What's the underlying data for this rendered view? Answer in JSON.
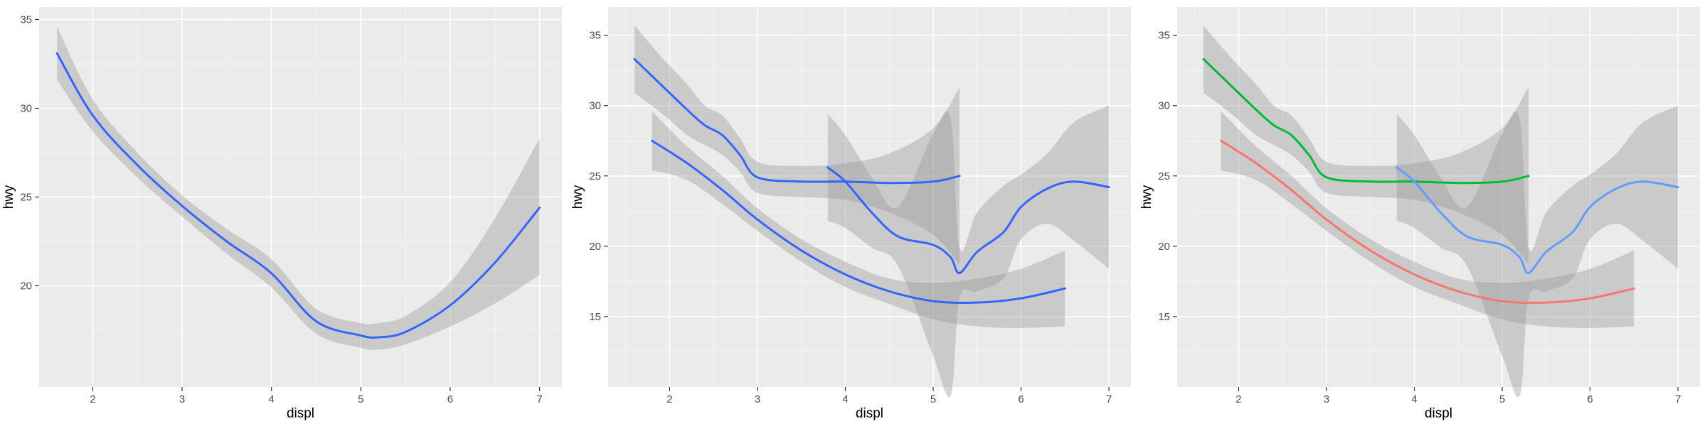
{
  "chart_data": [
    {
      "type": "line",
      "xlabel": "displ",
      "ylabel": "hwy",
      "xlim": [
        1.4,
        7.25
      ],
      "ylim": [
        14.3,
        35.7
      ],
      "xticks": [
        2,
        3,
        4,
        5,
        6,
        7
      ],
      "yticks": [
        20,
        25,
        30,
        35
      ],
      "grid": true,
      "legend": "none",
      "series": [
        {
          "color": "#3366FF",
          "x": [
            1.6,
            2.0,
            2.5,
            3.0,
            3.5,
            4.0,
            4.5,
            5.0,
            5.2,
            5.5,
            6.0,
            6.5,
            7.0
          ],
          "y": [
            33.1,
            29.6,
            26.8,
            24.5,
            22.5,
            20.7,
            18.0,
            17.2,
            17.1,
            17.4,
            18.9,
            21.3,
            24.4
          ],
          "lo": [
            31.6,
            28.7,
            26.1,
            23.9,
            21.8,
            19.9,
            17.3,
            16.5,
            16.4,
            16.7,
            17.7,
            19.0,
            20.6
          ],
          "hi": [
            34.6,
            30.5,
            27.5,
            25.1,
            23.2,
            21.5,
            18.7,
            17.9,
            17.9,
            18.3,
            20.2,
            23.8,
            28.3
          ]
        }
      ]
    },
    {
      "type": "line",
      "xlabel": "displ",
      "ylabel": "hwy",
      "xlim": [
        1.3,
        7.25
      ],
      "ylim": [
        10.0,
        37.0
      ],
      "xticks": [
        2,
        3,
        4,
        5,
        6,
        7
      ],
      "yticks": [
        15,
        20,
        25,
        30,
        35
      ],
      "grid": true,
      "legend": "none",
      "series": [
        {
          "color": "#3366FF",
          "x": [
            1.8,
            2.2,
            2.6,
            3.0,
            3.5,
            4.0,
            4.5,
            5.0,
            5.5,
            6.0,
            6.5
          ],
          "y": [
            27.5,
            25.9,
            24.0,
            21.9,
            19.7,
            18.0,
            16.8,
            16.1,
            16.0,
            16.3,
            17.0
          ],
          "lo": [
            25.4,
            24.7,
            23.0,
            21.1,
            18.9,
            17.1,
            15.9,
            14.8,
            14.3,
            14.2,
            14.3
          ],
          "hi": [
            29.6,
            27.1,
            25.0,
            22.7,
            20.5,
            18.9,
            17.7,
            17.4,
            17.7,
            18.4,
            19.7
          ]
        },
        {
          "color": "#3366FF",
          "x": [
            1.6,
            1.9,
            2.2,
            2.4,
            2.6,
            2.8,
            3.0,
            3.5,
            4.0,
            4.5,
            5.0,
            5.3
          ],
          "y": [
            33.3,
            31.5,
            29.7,
            28.6,
            27.9,
            26.5,
            24.9,
            24.6,
            24.6,
            24.5,
            24.6,
            25.0
          ],
          "lo": [
            30.9,
            29.5,
            27.9,
            27.2,
            26.5,
            25.3,
            23.8,
            23.5,
            23.3,
            22.4,
            20.8,
            18.7
          ],
          "hi": [
            35.7,
            33.5,
            31.5,
            30.0,
            29.3,
            27.7,
            26.0,
            25.7,
            25.9,
            26.6,
            28.4,
            31.3
          ]
        },
        {
          "color": "#3366FF",
          "x": [
            3.8,
            4.0,
            4.3,
            4.6,
            5.0,
            5.2,
            5.3,
            5.5,
            5.8,
            6.0,
            6.3,
            6.6,
            7.0
          ],
          "y": [
            25.6,
            24.6,
            22.4,
            20.7,
            20.1,
            19.2,
            18.1,
            19.6,
            21.0,
            22.8,
            24.1,
            24.6,
            24.2
          ],
          "lo": [
            21.8,
            21.3,
            19.9,
            18.6,
            12.2,
            9.4,
            16.3,
            16.8,
            17.7,
            20.5,
            21.6,
            20.4,
            18.4
          ],
          "hi": [
            29.4,
            27.9,
            24.9,
            22.8,
            28.0,
            29.0,
            19.9,
            22.4,
            24.3,
            25.1,
            26.6,
            28.8,
            30.0
          ]
        }
      ]
    },
    {
      "type": "line",
      "xlabel": "displ",
      "ylabel": "hwy",
      "xlim": [
        1.3,
        7.25
      ],
      "ylim": [
        10.0,
        37.0
      ],
      "xticks": [
        2,
        3,
        4,
        5,
        6,
        7
      ],
      "yticks": [
        15,
        20,
        25,
        30,
        35
      ],
      "grid": true,
      "legend": "none",
      "series": [
        {
          "color": "#F8766D",
          "x": [
            1.8,
            2.2,
            2.6,
            3.0,
            3.5,
            4.0,
            4.5,
            5.0,
            5.5,
            6.0,
            6.5
          ],
          "y": [
            27.5,
            25.9,
            24.0,
            21.9,
            19.7,
            18.0,
            16.8,
            16.1,
            16.0,
            16.3,
            17.0
          ],
          "lo": [
            25.4,
            24.7,
            23.0,
            21.1,
            18.9,
            17.1,
            15.9,
            14.8,
            14.3,
            14.2,
            14.3
          ],
          "hi": [
            29.6,
            27.1,
            25.0,
            22.7,
            20.5,
            18.9,
            17.7,
            17.4,
            17.7,
            18.4,
            19.7
          ]
        },
        {
          "color": "#00BA38",
          "x": [
            1.6,
            1.9,
            2.2,
            2.4,
            2.6,
            2.8,
            3.0,
            3.5,
            4.0,
            4.5,
            5.0,
            5.3
          ],
          "y": [
            33.3,
            31.5,
            29.7,
            28.6,
            27.9,
            26.5,
            24.9,
            24.6,
            24.6,
            24.5,
            24.6,
            25.0
          ],
          "lo": [
            30.9,
            29.5,
            27.9,
            27.2,
            26.5,
            25.3,
            23.8,
            23.5,
            23.3,
            22.4,
            20.8,
            18.7
          ],
          "hi": [
            35.7,
            33.5,
            31.5,
            30.0,
            29.3,
            27.7,
            26.0,
            25.7,
            25.9,
            26.6,
            28.4,
            31.3
          ]
        },
        {
          "color": "#619CFF",
          "x": [
            3.8,
            4.0,
            4.3,
            4.6,
            5.0,
            5.2,
            5.3,
            5.5,
            5.8,
            6.0,
            6.3,
            6.6,
            7.0
          ],
          "y": [
            25.6,
            24.6,
            22.4,
            20.7,
            20.1,
            19.2,
            18.1,
            19.6,
            21.0,
            22.8,
            24.1,
            24.6,
            24.2
          ],
          "lo": [
            21.8,
            21.3,
            19.9,
            18.6,
            12.2,
            9.4,
            16.3,
            16.8,
            17.7,
            20.5,
            21.6,
            20.4,
            18.4
          ],
          "hi": [
            29.4,
            27.9,
            24.9,
            22.8,
            28.0,
            29.0,
            19.9,
            22.4,
            24.3,
            25.1,
            26.6,
            28.8,
            30.0
          ]
        }
      ]
    }
  ],
  "colors": {
    "panel_background": "#EBEBEB",
    "grid_major": "#FFFFFF",
    "ribbon": "#999999"
  }
}
